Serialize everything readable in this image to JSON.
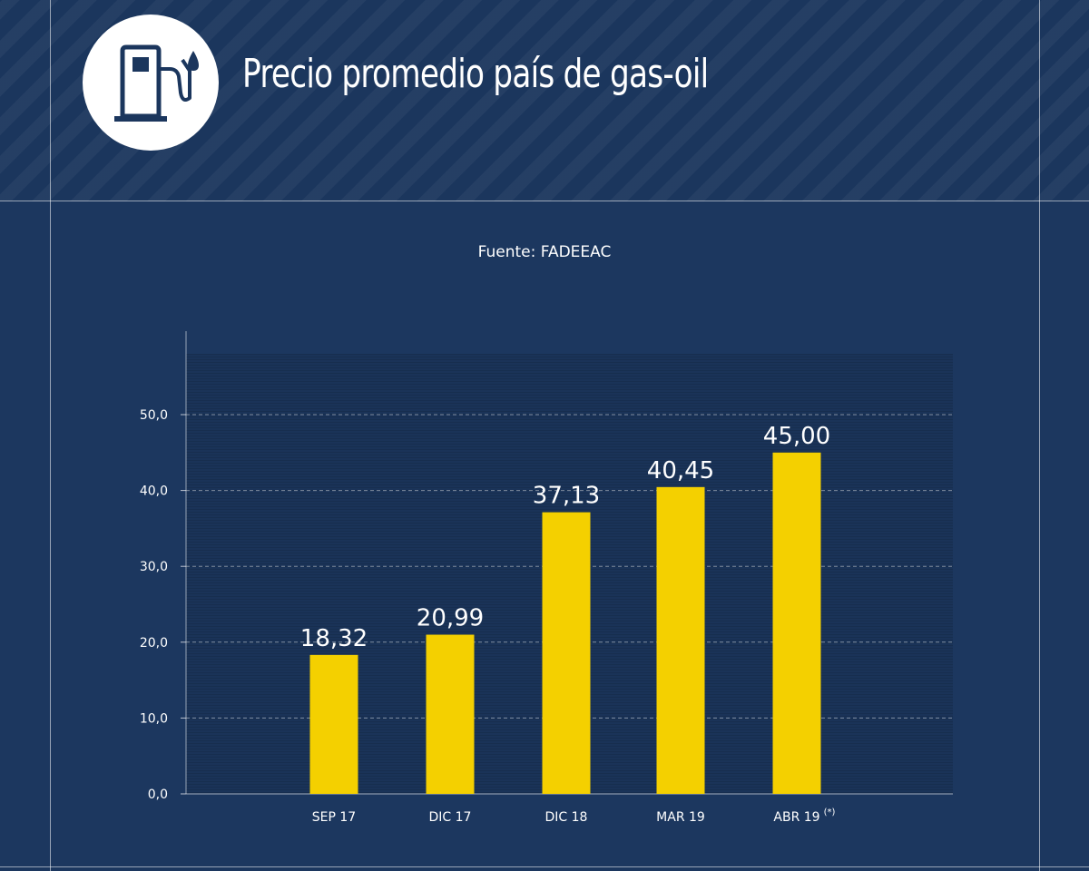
{
  "header": {
    "title": "Precio promedio país de gas-oil",
    "icon": "fuel-pump-icon"
  },
  "source_text": "Fuente: FADEEAC",
  "colors": {
    "background": "#1c375f",
    "header_background": "#1b365d",
    "bar": "#f4d000",
    "text": "#ffffff"
  },
  "chart_data": {
    "type": "bar",
    "categories": [
      "SEP 17",
      "DIC 17",
      "DIC 18",
      "MAR 19",
      "ABR 19"
    ],
    "category_notes": [
      "",
      "",
      "",
      "",
      "(*)"
    ],
    "values": [
      18.32,
      20.99,
      37.13,
      40.45,
      45.0
    ],
    "value_labels": [
      "18,32",
      "20,99",
      "37,13",
      "40,45",
      "45,00"
    ],
    "yticks": [
      0,
      10,
      20,
      30,
      40,
      50
    ],
    "ytick_labels": [
      "0,0",
      "10,0",
      "20,0",
      "30,0",
      "40,0",
      "50,0"
    ],
    "ylim": [
      0,
      50
    ],
    "grid": true,
    "title": "",
    "xlabel": "",
    "ylabel": ""
  }
}
